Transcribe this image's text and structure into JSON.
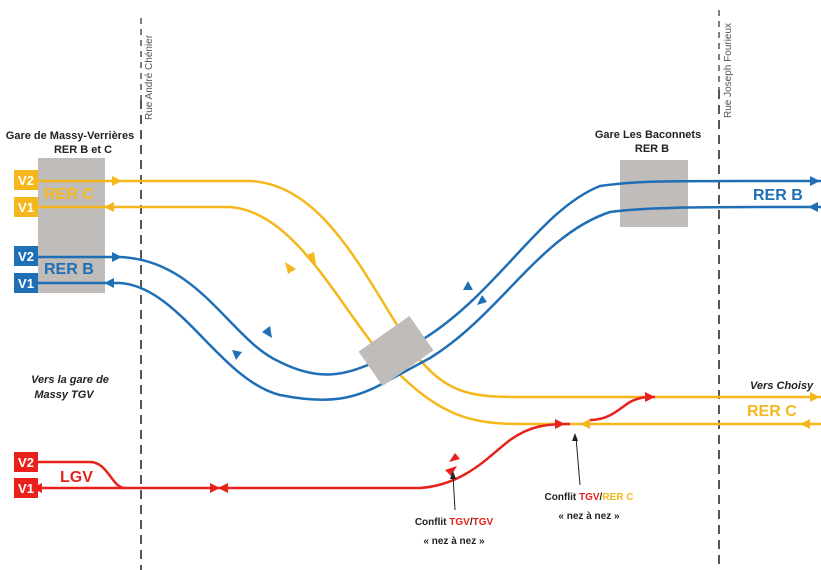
{
  "colors": {
    "rer_b": "#1f6fb6",
    "rer_c": "#f5b81c",
    "tgv": "#e8211c",
    "platform": "#bfbcb9",
    "street_line": "#555555"
  },
  "streets": {
    "left": "Rue André Chénier",
    "right": "Rue Joseph Fourieux"
  },
  "stations": {
    "massy_line1": "Gare de Massy-Verrières",
    "massy_line2": "RER B et C",
    "baconnets_line1": "Gare Les Baconnets",
    "baconnets_line2": "RER B"
  },
  "track_tags": {
    "rer_c_v2": "V2",
    "rer_c_v1": "V1",
    "rer_b_v2": "V2",
    "rer_b_v1": "V1",
    "lgv_v2": "V2",
    "lgv_v1": "V1"
  },
  "line_labels": {
    "rer_c_left": "RER C",
    "rer_b_left": "RER B",
    "rer_b_right": "RER B",
    "rer_c_right": "RER C",
    "lgv": "LGV"
  },
  "annotations": {
    "massy_tgv_1": "Vers la gare de",
    "massy_tgv_2": "Massy TGV",
    "choisy": "Vers Choisy"
  },
  "conflicts": {
    "tgv_tgv": {
      "prefix": "Conflit ",
      "red1": "TGV",
      "slash": "/",
      "red2": "TGV",
      "line2": "« nez à nez »"
    },
    "tgv_rerc": {
      "prefix": "Conflit ",
      "red": "TGV",
      "slash": "/",
      "orange": "RER C",
      "line2": "« nez à nez »"
    }
  }
}
